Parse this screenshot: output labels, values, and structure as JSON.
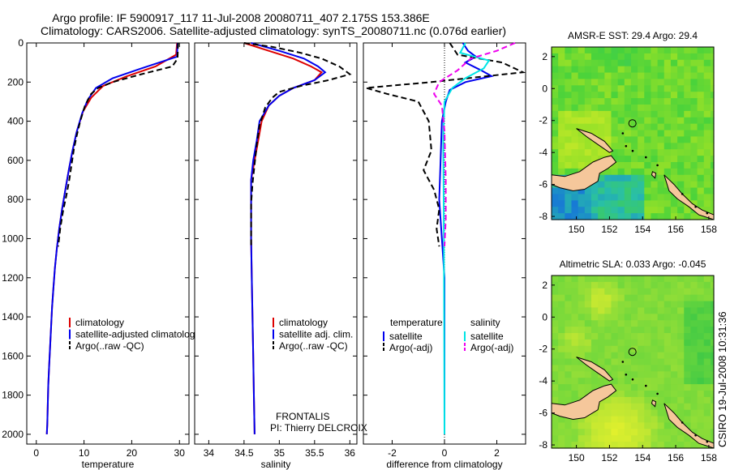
{
  "header": {
    "line1": "Argo profile: IF 5900917_117 11-Jul-2008 20080711_407 2.175S 153.386E",
    "line2": "Climatology: CARS2006. Satellite-adjusted climatology: synTS_20080711.nc (0.076d earlier)"
  },
  "side_label": "CSIRO 19-Jul-2008 10:31:36",
  "credits": {
    "line1": "FRONTALIS",
    "line2": "PI: Thierry DELCROIX"
  },
  "colors": {
    "climatology": "#dd0000",
    "satellite": "#0000ee",
    "argo": "#000000",
    "sal_sat": "#00e5e5",
    "sal_argo": "#ee00ee",
    "land": "#f5c79b"
  },
  "chart_data": [
    {
      "type": "line",
      "xlabel": "temperature",
      "xlim": [
        -2,
        32
      ],
      "ylim": [
        2050,
        0
      ],
      "xticks": [
        0,
        10,
        20,
        30
      ],
      "yticks": [
        0,
        200,
        400,
        600,
        800,
        1000,
        1200,
        1400,
        1600,
        1800,
        2000
      ],
      "legend": [
        "climatology",
        "satellite-adjusted climatology",
        "Argo(..raw -QC)"
      ],
      "series": [
        {
          "name": "climatology",
          "color": "#dd0000",
          "dash": false,
          "points": [
            [
              29.5,
              0
            ],
            [
              29.3,
              60
            ],
            [
              25,
              120
            ],
            [
              19,
              170
            ],
            [
              14,
              220
            ],
            [
              11.5,
              280
            ],
            [
              9.8,
              350
            ],
            [
              8.5,
              450
            ],
            [
              7.6,
              550
            ],
            [
              6.8,
              650
            ],
            [
              6.1,
              750
            ],
            [
              5.4,
              850
            ],
            [
              4.8,
              950
            ],
            [
              4.3,
              1050
            ],
            [
              3.9,
              1150
            ],
            [
              3.6,
              1250
            ],
            [
              3.3,
              1350
            ],
            [
              3.1,
              1450
            ],
            [
              2.9,
              1550
            ],
            [
              2.7,
              1650
            ],
            [
              2.5,
              1750
            ],
            [
              2.4,
              1850
            ],
            [
              2.3,
              1950
            ],
            [
              2.2,
              2000
            ]
          ]
        },
        {
          "name": "satellite-adjusted climatology",
          "color": "#0000ee",
          "dash": false,
          "points": [
            [
              29.6,
              0
            ],
            [
              29.5,
              70
            ],
            [
              22,
              130
            ],
            [
              16,
              180
            ],
            [
              12.5,
              230
            ],
            [
              10.8,
              290
            ],
            [
              9.6,
              360
            ],
            [
              8.4,
              460
            ],
            [
              7.5,
              560
            ],
            [
              6.8,
              650
            ],
            [
              6.1,
              750
            ],
            [
              5.4,
              850
            ],
            [
              4.8,
              950
            ],
            [
              4.3,
              1050
            ],
            [
              3.9,
              1150
            ],
            [
              3.6,
              1250
            ],
            [
              3.3,
              1350
            ],
            [
              3.1,
              1450
            ],
            [
              2.9,
              1550
            ],
            [
              2.7,
              1650
            ],
            [
              2.5,
              1750
            ],
            [
              2.4,
              1850
            ],
            [
              2.3,
              1950
            ],
            [
              2.2,
              2000
            ]
          ]
        },
        {
          "name": "Argo(..raw -QC)",
          "color": "#000000",
          "dash": true,
          "points": [
            [
              29.7,
              0
            ],
            [
              29.6,
              80
            ],
            [
              28.5,
              120
            ],
            [
              22,
              160
            ],
            [
              16,
              200
            ],
            [
              13,
              230
            ],
            [
              11.5,
              260
            ],
            [
              10.2,
              320
            ],
            [
              9.2,
              400
            ],
            [
              8.5,
              470
            ],
            [
              7.9,
              540
            ],
            [
              7.4,
              620
            ],
            [
              6.9,
              700
            ],
            [
              6.3,
              780
            ],
            [
              5.6,
              860
            ],
            [
              5.0,
              950
            ],
            [
              4.6,
              1040
            ]
          ]
        }
      ]
    },
    {
      "type": "line",
      "xlabel": "salinity",
      "xlim": [
        33.8,
        36.1
      ],
      "ylim": [
        2050,
        0
      ],
      "xticks": [
        34,
        34.5,
        35,
        35.5,
        36
      ],
      "legend": [
        "climatology",
        "satellite adj. clim.",
        "Argo(..raw -QC)"
      ],
      "series": [
        {
          "name": "climatology",
          "color": "#dd0000",
          "dash": false,
          "points": [
            [
              34.5,
              0
            ],
            [
              34.85,
              40
            ],
            [
              35.2,
              80
            ],
            [
              35.45,
              120
            ],
            [
              35.6,
              150
            ],
            [
              35.5,
              190
            ],
            [
              35.2,
              230
            ],
            [
              35.0,
              270
            ],
            [
              34.85,
              320
            ],
            [
              34.75,
              400
            ],
            [
              34.7,
              500
            ],
            [
              34.65,
              600
            ],
            [
              34.6,
              700
            ],
            [
              34.6,
              800
            ],
            [
              34.6,
              900
            ],
            [
              34.6,
              1000
            ],
            [
              34.61,
              1200
            ],
            [
              34.62,
              1400
            ],
            [
              34.63,
              1600
            ],
            [
              34.64,
              1800
            ],
            [
              34.65,
              2000
            ]
          ]
        },
        {
          "name": "satellite adj. clim.",
          "color": "#0000ee",
          "dash": false,
          "points": [
            [
              34.6,
              0
            ],
            [
              35.0,
              40
            ],
            [
              35.35,
              80
            ],
            [
              35.55,
              120
            ],
            [
              35.65,
              150
            ],
            [
              35.5,
              190
            ],
            [
              35.2,
              230
            ],
            [
              35.0,
              270
            ],
            [
              34.85,
              320
            ],
            [
              34.72,
              400
            ],
            [
              34.68,
              500
            ],
            [
              34.63,
              600
            ],
            [
              34.6,
              700
            ],
            [
              34.6,
              800
            ],
            [
              34.6,
              900
            ],
            [
              34.6,
              1000
            ],
            [
              34.61,
              1200
            ],
            [
              34.62,
              1400
            ],
            [
              34.63,
              1600
            ],
            [
              34.64,
              1800
            ],
            [
              34.65,
              2000
            ]
          ]
        },
        {
          "name": "Argo(..raw -QC)",
          "color": "#000000",
          "dash": true,
          "points": [
            [
              34.5,
              0
            ],
            [
              34.9,
              20
            ],
            [
              35.3,
              50
            ],
            [
              35.6,
              80
            ],
            [
              35.85,
              120
            ],
            [
              36.0,
              160
            ],
            [
              35.7,
              190
            ],
            [
              35.3,
              220
            ],
            [
              35.0,
              250
            ],
            [
              34.9,
              280
            ],
            [
              34.8,
              330
            ],
            [
              34.72,
              420
            ],
            [
              34.68,
              520
            ],
            [
              34.65,
              620
            ],
            [
              34.62,
              720
            ],
            [
              34.6,
              820
            ],
            [
              34.6,
              920
            ],
            [
              34.6,
              1040
            ]
          ]
        }
      ]
    },
    {
      "type": "line",
      "xlabel": "difference from climatology",
      "xlim": [
        -3.1,
        3.1
      ],
      "ylim": [
        2050,
        0
      ],
      "xticks": [
        -2,
        0,
        2
      ],
      "legend": [
        "temperature",
        "satellite",
        "Argo(-adj)",
        "salinity",
        "satellite",
        "Argo(-adj)"
      ],
      "series": [
        {
          "name": "satellite",
          "group": "temperature",
          "color": "#0000ee",
          "dash": false,
          "points": [
            [
              0.7,
              0
            ],
            [
              0.9,
              40
            ],
            [
              1.2,
              70
            ],
            [
              0.8,
              100
            ],
            [
              1.4,
              140
            ],
            [
              1.8,
              170
            ],
            [
              0.8,
              200
            ],
            [
              0.2,
              240
            ],
            [
              0.05,
              300
            ],
            [
              -0.1,
              400
            ],
            [
              -0.15,
              600
            ],
            [
              -0.2,
              800
            ],
            [
              -0.1,
              1000
            ],
            [
              0,
              1200
            ],
            [
              0,
              1600
            ],
            [
              0,
              2000
            ]
          ]
        },
        {
          "name": "Argo(-adj)",
          "group": "temperature",
          "color": "#000000",
          "dash": true,
          "points": [
            [
              0.2,
              0
            ],
            [
              0.5,
              60
            ],
            [
              2.2,
              100
            ],
            [
              3.0,
              150
            ],
            [
              -0.5,
              200
            ],
            [
              -3.0,
              230
            ],
            [
              -2.2,
              260
            ],
            [
              -1.0,
              300
            ],
            [
              -0.6,
              400
            ],
            [
              -0.5,
              550
            ],
            [
              -0.8,
              650
            ],
            [
              -0.4,
              750
            ],
            [
              -0.2,
              850
            ],
            [
              -0.3,
              950
            ],
            [
              -0.2,
              1040
            ]
          ]
        },
        {
          "name": "satellite",
          "group": "salinity",
          "color": "#00e5e5",
          "dash": false,
          "points": [
            [
              0.8,
              0
            ],
            [
              0.6,
              50
            ],
            [
              1.7,
              90
            ],
            [
              1.5,
              130
            ],
            [
              0.8,
              180
            ],
            [
              0.3,
              230
            ],
            [
              0,
              300
            ],
            [
              -0.05,
              500
            ],
            [
              -0.03,
              800
            ],
            [
              -0.02,
              1200
            ],
            [
              -0.01,
              1600
            ],
            [
              0,
              2000
            ]
          ]
        },
        {
          "name": "Argo(-adj)",
          "group": "salinity",
          "color": "#ee00ee",
          "dash": true,
          "points": [
            [
              2.7,
              0
            ],
            [
              2.0,
              40
            ],
            [
              1.0,
              80
            ],
            [
              0.5,
              140
            ],
            [
              -0.2,
              200
            ],
            [
              -0.4,
              260
            ],
            [
              -0.1,
              320
            ],
            [
              0,
              450
            ],
            [
              0.05,
              700
            ],
            [
              0.05,
              900
            ],
            [
              0,
              1040
            ]
          ]
        }
      ]
    },
    {
      "type": "heatmap",
      "title": "AMSR-E SST: 29.4  Argo: 29.4",
      "xlim": [
        148.5,
        158.3
      ],
      "ylim": [
        -8.2,
        2.6
      ],
      "xticks": [
        150,
        152,
        154,
        156,
        158
      ],
      "yticks": [
        -8,
        -6,
        -4,
        -2,
        0,
        2
      ],
      "argo_position": {
        "lon": 153.386,
        "lat": -2.175
      }
    },
    {
      "type": "heatmap",
      "title": "Altimetric SLA: 0.033  Argo: -0.045",
      "xlim": [
        148.5,
        158.3
      ],
      "ylim": [
        -8.2,
        2.6
      ],
      "xticks": [
        150,
        152,
        154,
        156,
        158
      ],
      "yticks": [
        -8,
        -6,
        -4,
        -2,
        0,
        2
      ],
      "argo_position": {
        "lon": 153.386,
        "lat": -2.175
      }
    }
  ]
}
